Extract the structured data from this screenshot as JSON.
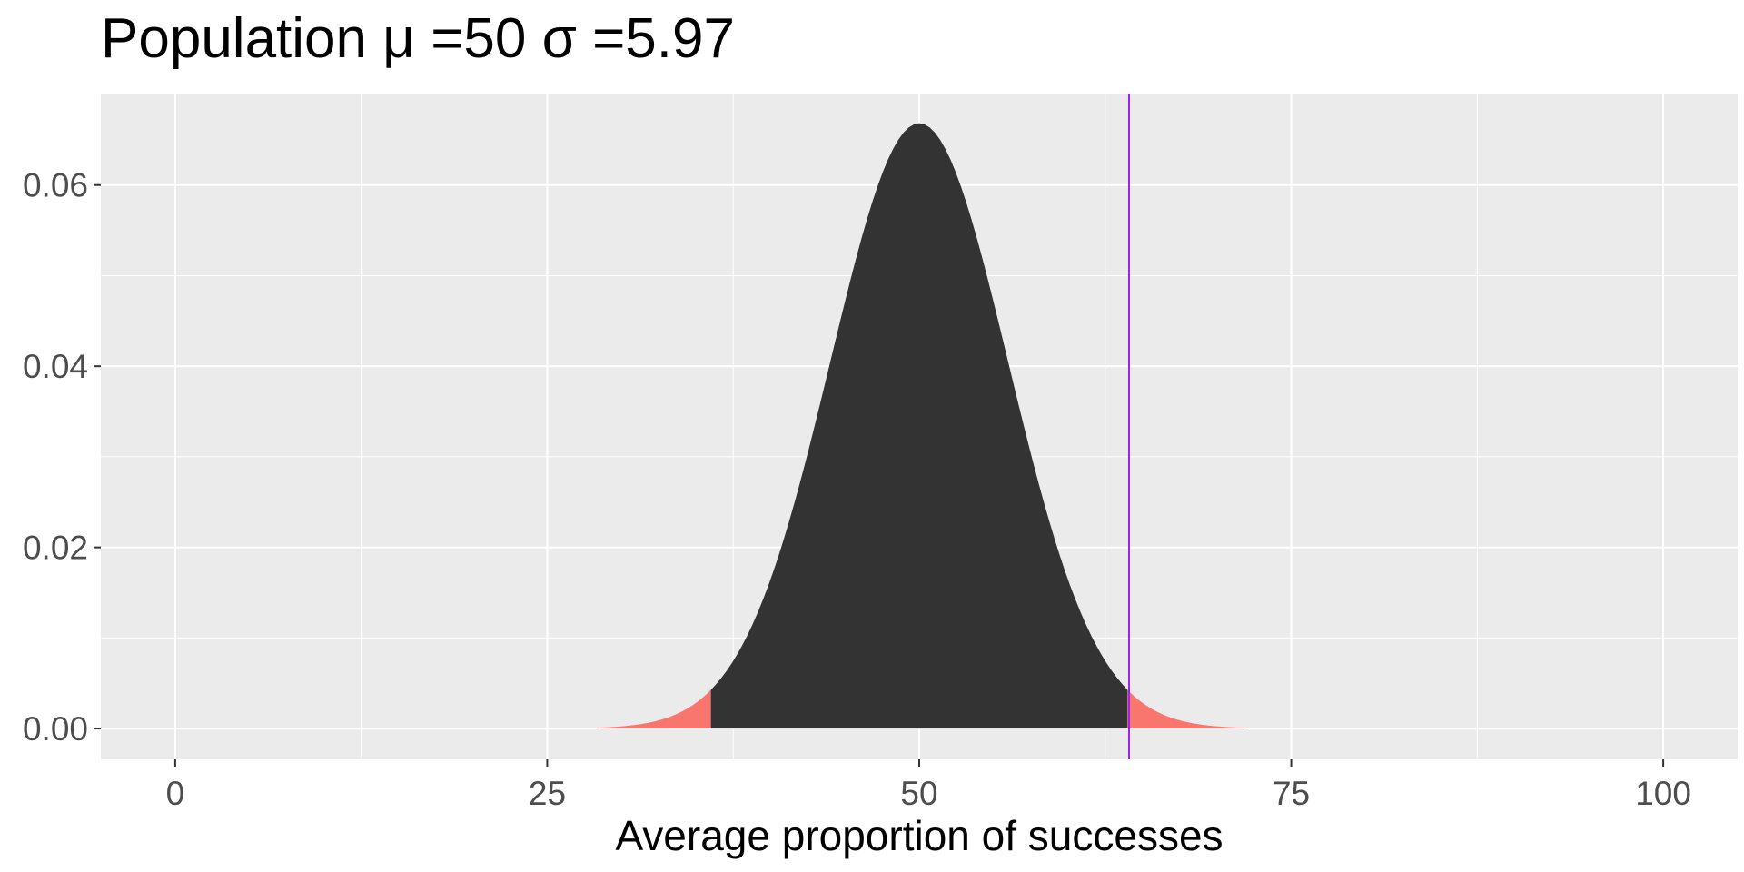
{
  "chart_data": {
    "type": "area",
    "title": "Population μ =50 σ =5.97",
    "xlabel": "Average proportion of successes",
    "ylabel": "",
    "xlim": [
      -5,
      105
    ],
    "ylim": [
      -0.0034,
      0.07
    ],
    "x_ticks": [
      0,
      25,
      50,
      75,
      100
    ],
    "x_tick_labels": [
      "0",
      "25",
      "50",
      "75",
      "100"
    ],
    "y_ticks": [
      0.0,
      0.02,
      0.04,
      0.06
    ],
    "y_tick_labels": [
      "0.00",
      "0.02",
      "0.04",
      "0.06"
    ],
    "grid": true,
    "distribution": {
      "kind": "normal",
      "mean": 50,
      "sd": 5.97,
      "x_range": [
        28.3,
        72
      ]
    },
    "shaded_regions": [
      {
        "name": "lower tail",
        "x_range": [
          28.3,
          36
        ],
        "color": "#f8766d"
      },
      {
        "name": "middle",
        "x_range": [
          36,
          64
        ],
        "color": "#333333"
      },
      {
        "name": "upper tail",
        "x_range": [
          64,
          72
        ],
        "color": "#f8766d"
      }
    ],
    "vline": {
      "x": 64.1,
      "color": "#a020f0"
    },
    "colors": {
      "panel_background": "#ebebeb",
      "grid": "#ffffff",
      "tail": "#f8766d",
      "body": "#333333",
      "vline": "#a020f0"
    }
  }
}
